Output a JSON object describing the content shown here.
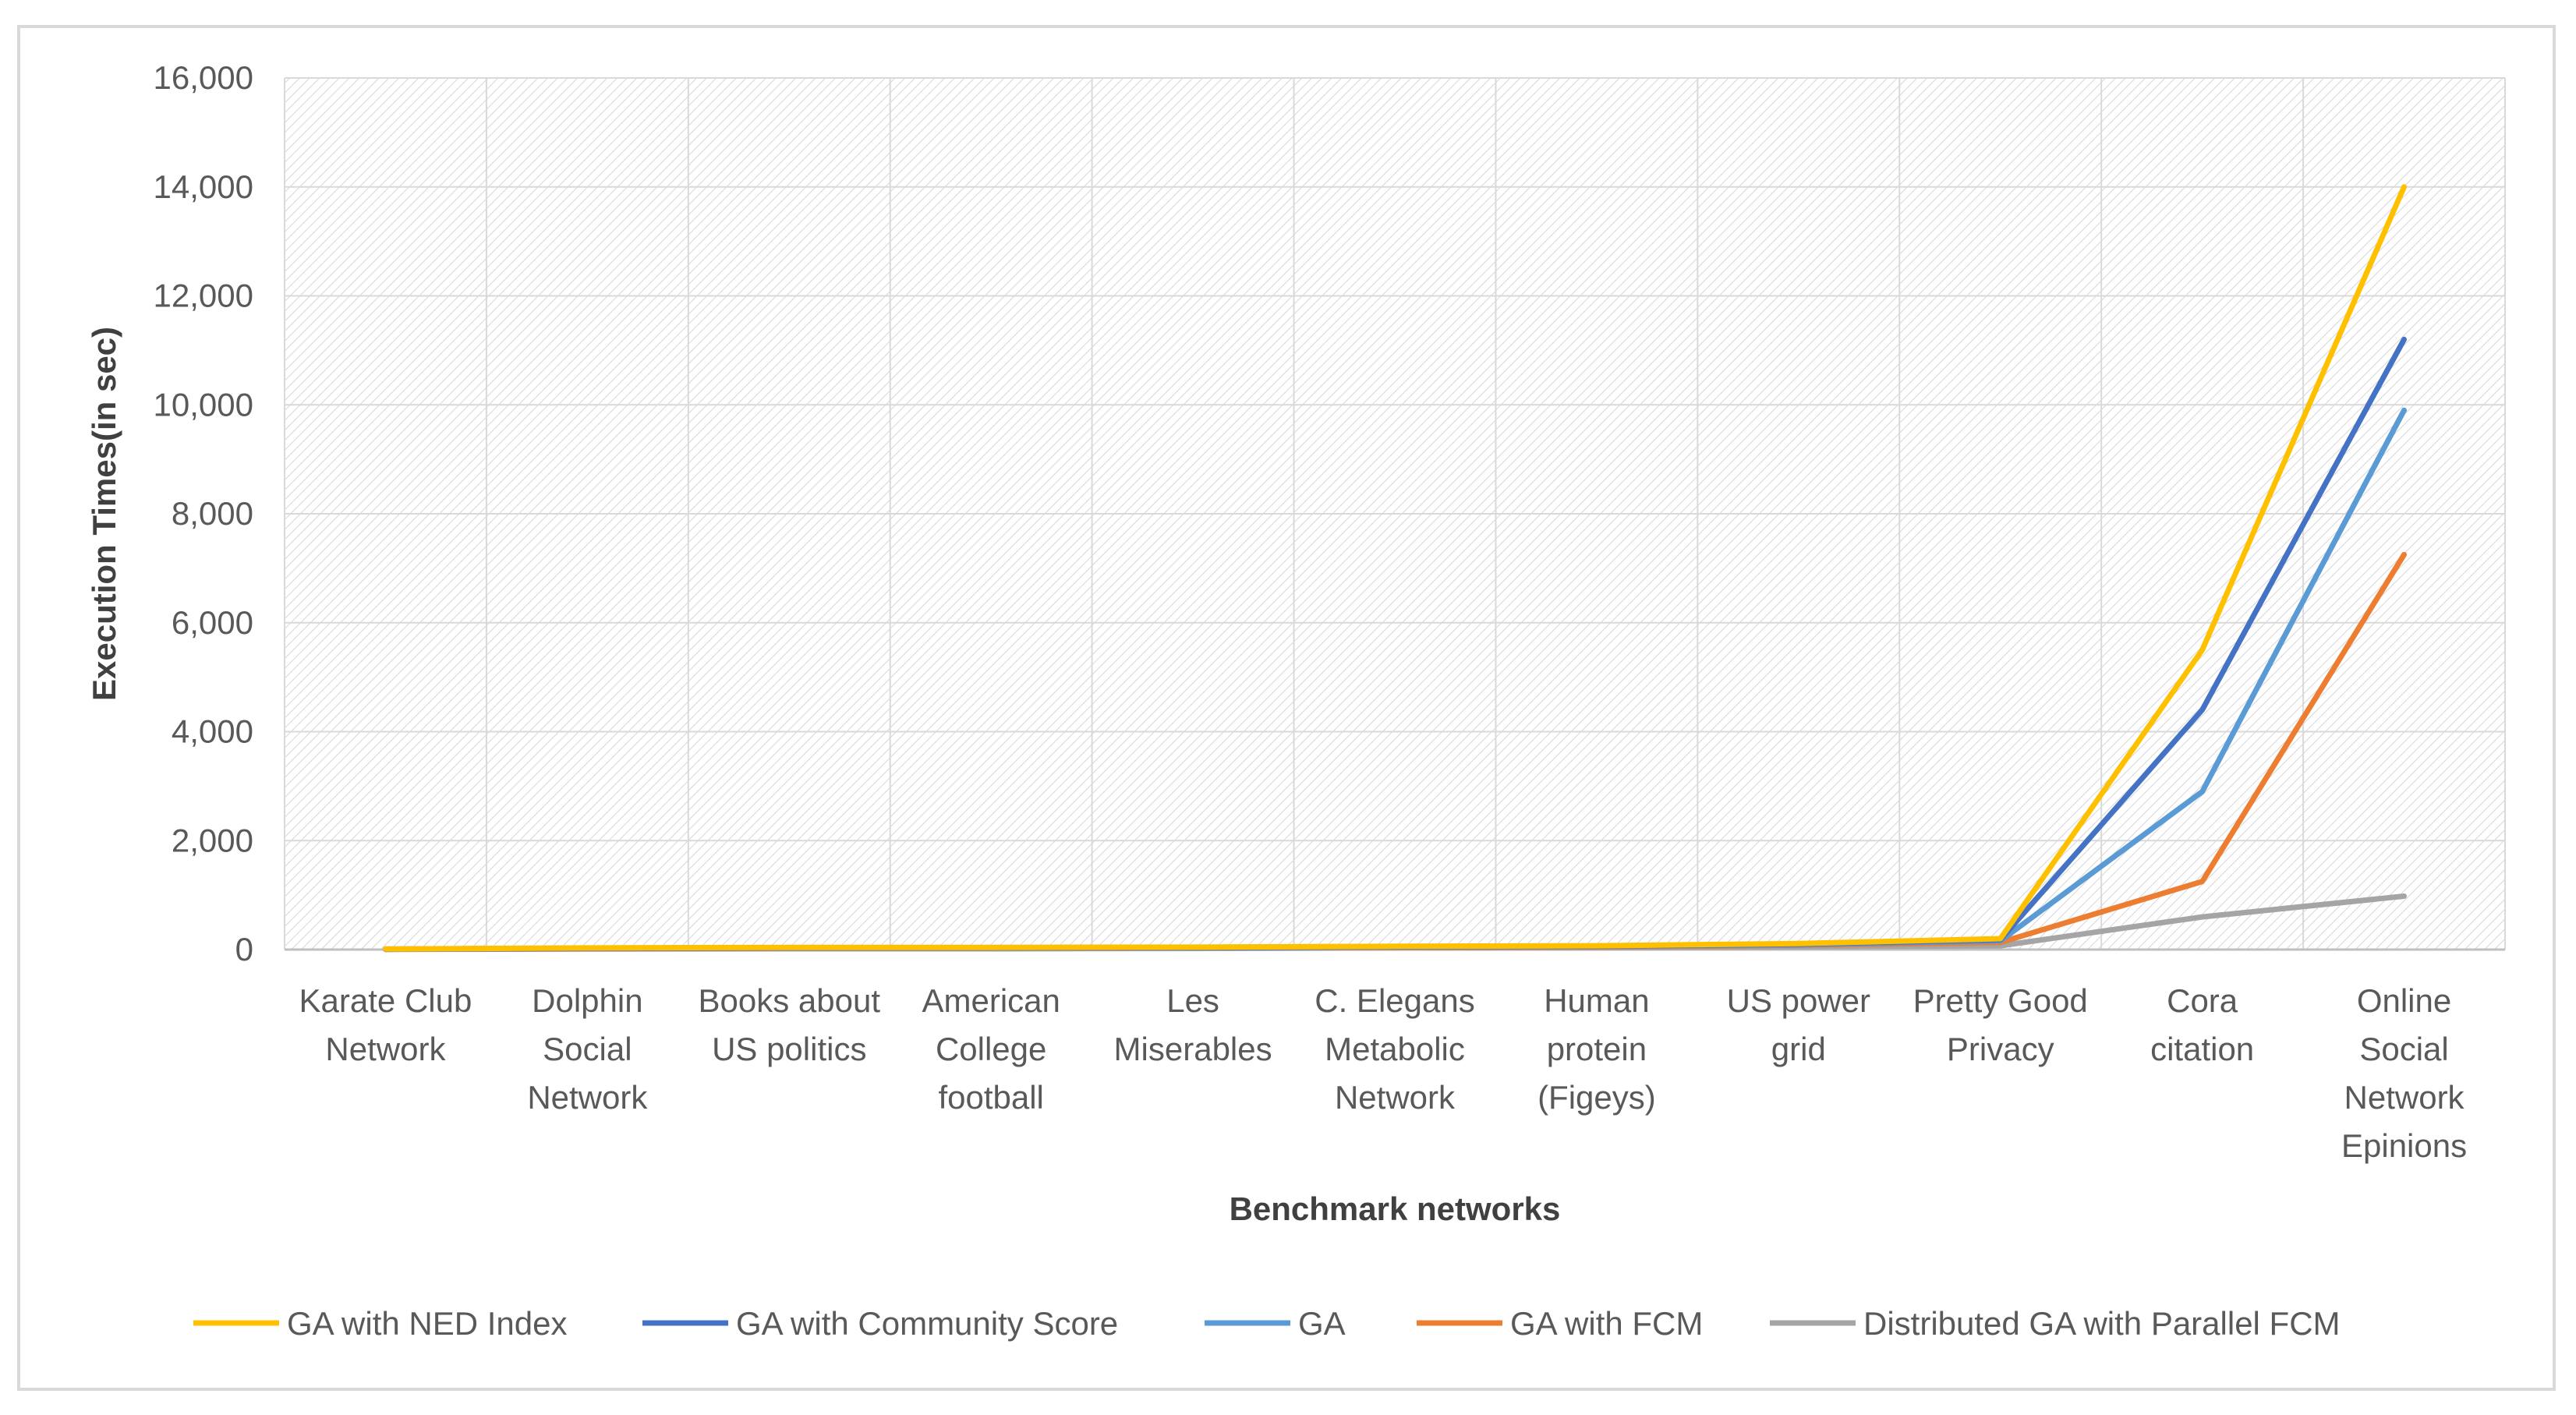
{
  "chart_data": {
    "type": "line",
    "title": "",
    "xlabel": "Benchmark networks",
    "ylabel": "Execution Times(in sec)",
    "ylim": [
      0,
      16000
    ],
    "yticks": [
      0,
      2000,
      4000,
      6000,
      8000,
      10000,
      12000,
      14000,
      16000
    ],
    "ytick_labels": [
      "0",
      "2,000",
      "4,000",
      "6,000",
      "8,000",
      "10,000",
      "12,000",
      "14,000",
      "16,000"
    ],
    "categories": [
      [
        "Karate Club",
        "Network"
      ],
      [
        "Dolphin",
        "Social",
        "Network"
      ],
      [
        "Books about",
        "US politics"
      ],
      [
        "American",
        "College",
        "football"
      ],
      [
        "Les",
        "Miserables"
      ],
      [
        "C. Elegans",
        "Metabolic",
        "Network"
      ],
      [
        "Human",
        "protein",
        "(Figeys)"
      ],
      [
        "US power",
        "grid"
      ],
      [
        "Pretty Good",
        "Privacy"
      ],
      [
        "Cora",
        "citation"
      ],
      [
        "Online",
        "Social",
        "Network",
        "Epinions"
      ]
    ],
    "grid": true,
    "legend_position": "bottom",
    "series": [
      {
        "name": "GA with NED Index",
        "color": "#ffc000",
        "values": [
          10,
          30,
          40,
          40,
          45,
          60,
          70,
          110,
          200,
          5500,
          14000
        ]
      },
      {
        "name": "GA with Community Score",
        "color": "#4472c4",
        "values": [
          8,
          25,
          35,
          35,
          40,
          55,
          65,
          100,
          180,
          4400,
          11200
        ]
      },
      {
        "name": "GA",
        "color": "#5b9bd5",
        "values": [
          6,
          20,
          30,
          30,
          35,
          50,
          60,
          90,
          160,
          2900,
          9900
        ]
      },
      {
        "name": "GA with FCM",
        "color": "#ed7d31",
        "values": [
          5,
          15,
          25,
          25,
          30,
          45,
          50,
          80,
          130,
          1250,
          7250
        ]
      },
      {
        "name": "Distributed GA with Parallel FCM",
        "color": "#a5a5a5",
        "values": [
          4,
          10,
          15,
          15,
          20,
          30,
          35,
          50,
          70,
          600,
          980
        ]
      }
    ]
  }
}
